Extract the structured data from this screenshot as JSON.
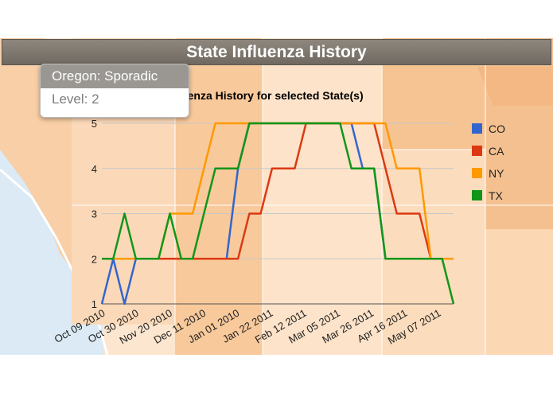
{
  "header": {
    "title": "State Influenza History"
  },
  "tooltip": {
    "state_label": "Oregon: Sporadic",
    "level_label": "Level: 2"
  },
  "colors": {
    "CO": "#3366cc",
    "CA": "#dc3912",
    "NY": "#ff9900",
    "TX": "#109618"
  },
  "chart_data": {
    "type": "line",
    "title": "CDC Weekly Influenza History for selected State(s)",
    "xlabel": "",
    "ylabel": "",
    "ylim": [
      1,
      5
    ],
    "yticks": [
      "1",
      "2",
      "3",
      "4",
      "5"
    ],
    "x_tick_labels": [
      "Oct 09 2010",
      "Oct 30 2010",
      "Nov 20 2010",
      "Dec 11 2010",
      "Jan 01 2010",
      "Jan 22 2011",
      "Feb 12 2011",
      "Mar 05 2011",
      "Mar 26 2011",
      "Apr 16 2011",
      "May 07 2011"
    ],
    "grid": true,
    "legend_position": "right",
    "series": [
      {
        "name": "CO",
        "values": [
          1,
          2,
          1,
          2,
          2,
          2,
          2,
          2,
          2,
          2,
          2,
          2,
          4,
          5,
          5,
          5,
          5,
          5,
          5,
          5,
          5,
          5,
          5,
          4,
          4,
          2,
          2,
          2,
          2,
          2,
          2,
          2
        ]
      },
      {
        "name": "CA",
        "values": [
          2,
          2,
          2,
          2,
          2,
          2,
          2,
          2,
          2,
          2,
          2,
          2,
          2,
          3,
          3,
          4,
          4,
          4,
          5,
          5,
          5,
          5,
          5,
          5,
          5,
          4,
          3,
          3,
          3,
          2,
          2,
          2
        ]
      },
      {
        "name": "NY",
        "values": [
          2,
          2,
          2,
          2,
          2,
          2,
          3,
          3,
          3,
          4,
          5,
          5,
          5,
          5,
          5,
          5,
          5,
          5,
          5,
          5,
          5,
          5,
          5,
          5,
          5,
          5,
          4,
          4,
          4,
          2,
          2,
          2
        ]
      },
      {
        "name": "TX",
        "values": [
          2,
          2,
          3,
          2,
          2,
          2,
          3,
          2,
          2,
          3,
          4,
          4,
          4,
          5,
          5,
          5,
          5,
          5,
          5,
          5,
          5,
          5,
          4,
          4,
          4,
          2,
          2,
          2,
          2,
          2,
          2,
          1
        ]
      }
    ]
  }
}
